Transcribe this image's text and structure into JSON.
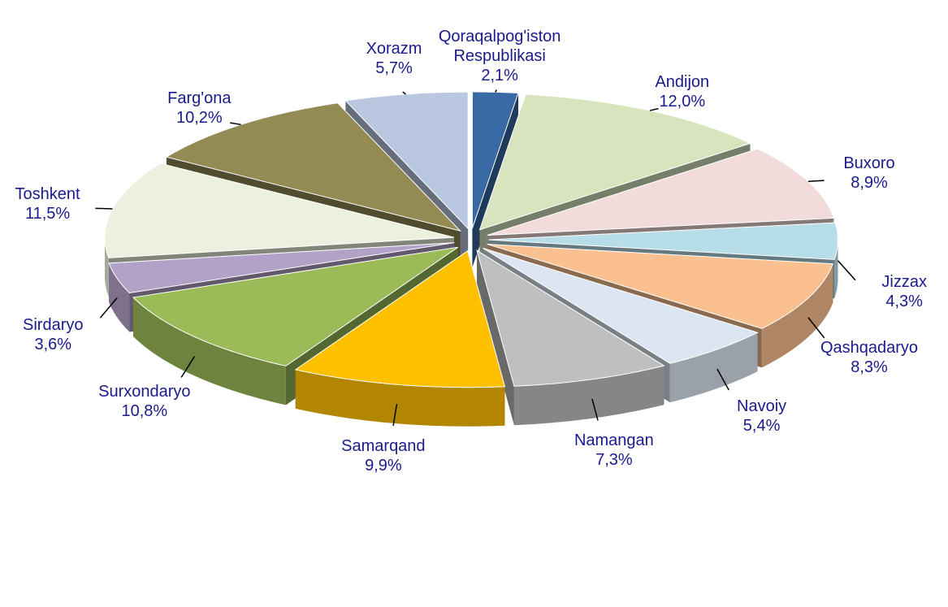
{
  "chart_data": {
    "type": "pie",
    "categories": [
      "Qoraqalpog'iston Respublikasi",
      "Andijon",
      "Buxoro",
      "Jizzax",
      "Qashqadaryo",
      "Navoiy",
      "Namangan",
      "Samarqand",
      "Surxondaryo",
      "Sirdaryo",
      "Toshkent",
      "Farg'ona",
      "Xorazm"
    ],
    "values": [
      2.1,
      12.0,
      8.9,
      4.3,
      8.3,
      5.4,
      7.3,
      9.9,
      10.8,
      3.6,
      11.5,
      10.2,
      5.7
    ],
    "value_labels": [
      "2,1%",
      "12,0%",
      "8,9%",
      "4,3%",
      "8,3%",
      "5,4%",
      "7,3%",
      "9,9%",
      "10,8%",
      "3,6%",
      "11,5%",
      "10,2%",
      "5,7%"
    ],
    "colors": [
      "#3a6aa6",
      "#d7e4bd",
      "#f2dcdb",
      "#b7dee8",
      "#fac090",
      "#dce6f2",
      "#bfbfbf",
      "#ffc000",
      "#9bbb59",
      "#b3a2c7",
      "#ebf1de",
      "#948a54",
      "#b9c7e0"
    ]
  }
}
